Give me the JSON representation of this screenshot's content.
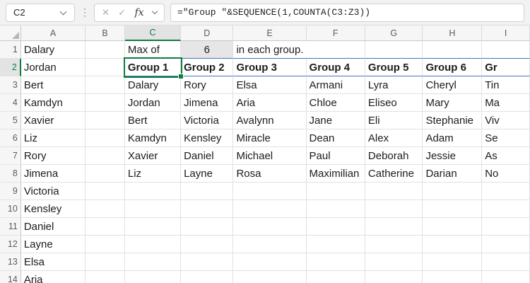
{
  "formula_bar": {
    "name_box_value": "C2",
    "more_dots": "⋮",
    "cancel_label": "✕",
    "enter_label": "✓",
    "fx_label": "fx",
    "formula": "=\"Group \"&SEQUENCE(1,COUNTA(C3:Z3))"
  },
  "colors": {
    "accent_green": "#107C41",
    "spill_border_blue": "#4472C4",
    "highlight_cell_fill": "#E7E6E6",
    "selected_header_fill": "#E3E3E3"
  },
  "sheet": {
    "columns": [
      "A",
      "B",
      "C",
      "D",
      "E",
      "F",
      "G",
      "H",
      "I"
    ],
    "selected_column": "C",
    "selected_row": 2,
    "active_cell": "C2",
    "spill_row": 2,
    "spill_from_column": "C",
    "gray_filled_cells": [
      "D1"
    ],
    "centered_cells": [
      "D1"
    ],
    "overflow_cells": [
      "E1"
    ],
    "rows": [
      {
        "n": 1,
        "cells": {
          "A": "Dalary",
          "C": "Max of",
          "D": "6",
          "E": "in each group."
        }
      },
      {
        "n": 2,
        "cells": {
          "A": "Jordan",
          "C": "Group 1",
          "D": "Group 2",
          "E": "Group 3",
          "F": "Group 4",
          "G": "Group 5",
          "H": "Group 6",
          "I": "Gr"
        }
      },
      {
        "n": 3,
        "cells": {
          "A": "Bert",
          "C": "Dalary",
          "D": "Rory",
          "E": "Elsa",
          "F": "Armani",
          "G": "Lyra",
          "H": "Cheryl",
          "I": "Tin"
        }
      },
      {
        "n": 4,
        "cells": {
          "A": "Kamdyn",
          "C": "Jordan",
          "D": "Jimena",
          "E": "Aria",
          "F": "Chloe",
          "G": "Eliseo",
          "H": "Mary",
          "I": "Ma"
        }
      },
      {
        "n": 5,
        "cells": {
          "A": "Xavier",
          "C": "Bert",
          "D": "Victoria",
          "E": "Avalynn",
          "F": "Jane",
          "G": "Eli",
          "H": "Stephanie",
          "I": "Viv"
        }
      },
      {
        "n": 6,
        "cells": {
          "A": "Liz",
          "C": "Kamdyn",
          "D": "Kensley",
          "E": "Miracle",
          "F": "Dean",
          "G": "Alex",
          "H": "Adam",
          "I": "Se"
        }
      },
      {
        "n": 7,
        "cells": {
          "A": "Rory",
          "C": "Xavier",
          "D": "Daniel",
          "E": "Michael",
          "F": "Paul",
          "G": "Deborah",
          "H": "Jessie",
          "I": "As"
        }
      },
      {
        "n": 8,
        "cells": {
          "A": "Jimena",
          "C": "Liz",
          "D": "Layne",
          "E": "Rosa",
          "F": "Maximilian",
          "G": "Catherine",
          "H": "Darian",
          "I": "No"
        }
      },
      {
        "n": 9,
        "cells": {
          "A": "Victoria"
        }
      },
      {
        "n": 10,
        "cells": {
          "A": "Kensley"
        }
      },
      {
        "n": 11,
        "cells": {
          "A": "Daniel"
        }
      },
      {
        "n": 12,
        "cells": {
          "A": "Layne"
        }
      },
      {
        "n": 13,
        "cells": {
          "A": "Elsa"
        }
      },
      {
        "n": 14,
        "cells": {
          "A": "Aria"
        }
      }
    ]
  }
}
